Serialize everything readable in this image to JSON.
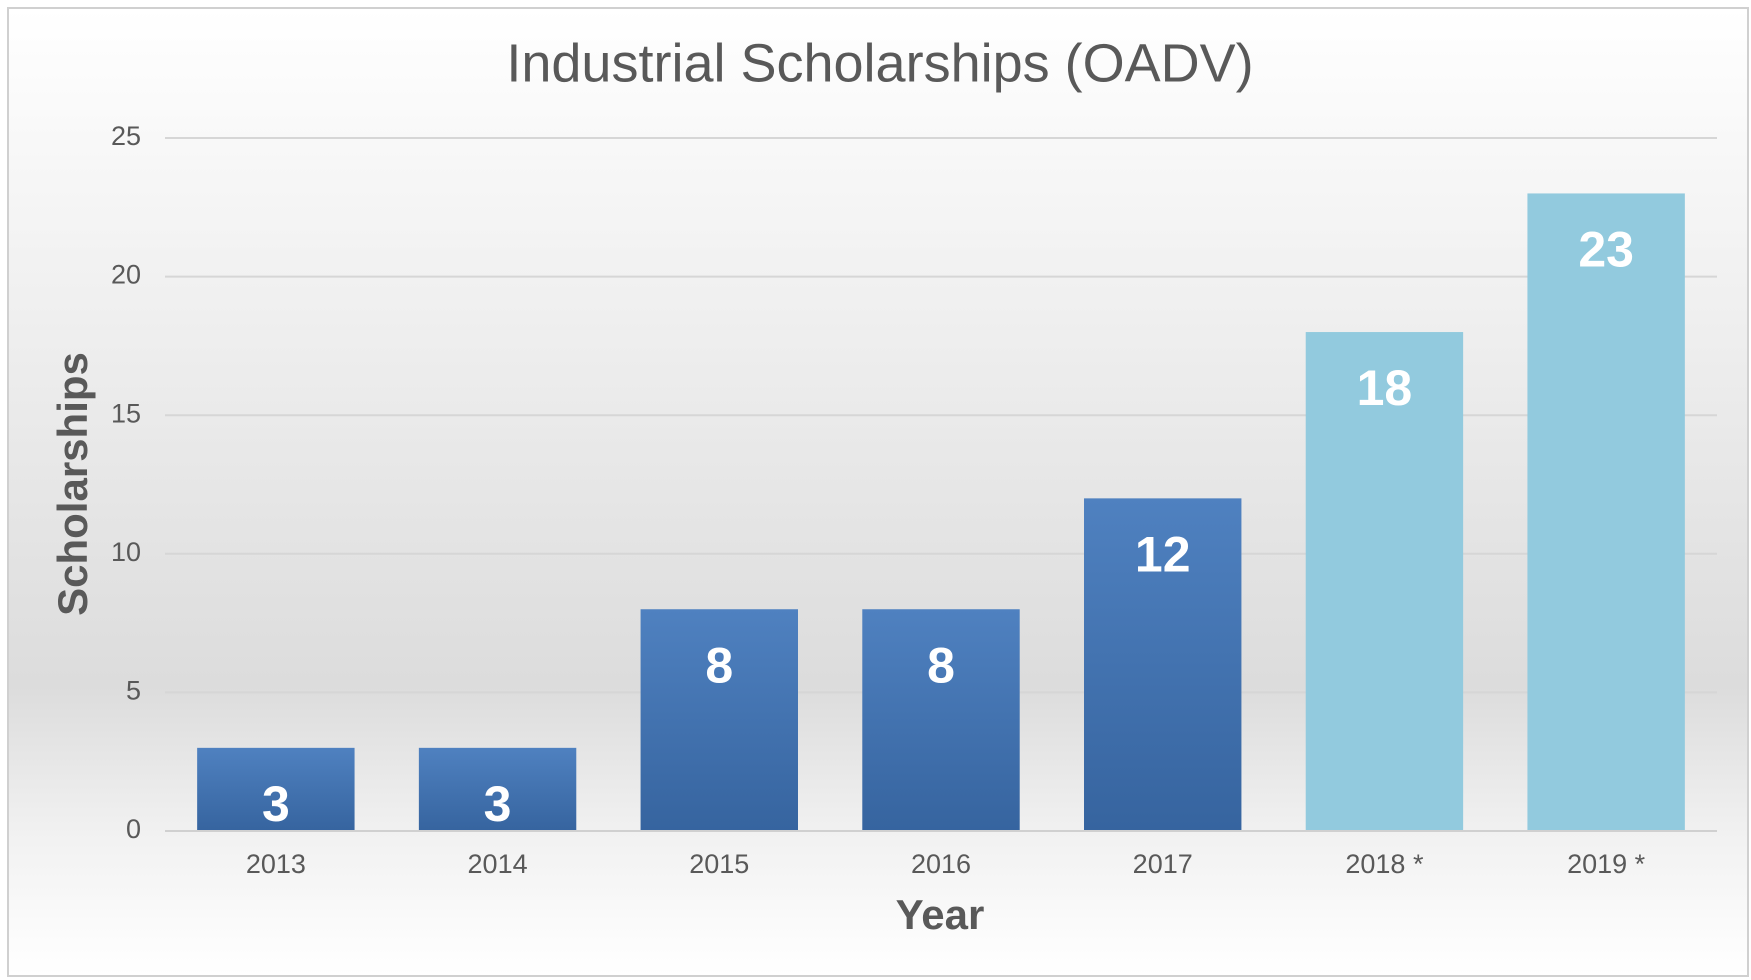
{
  "chart_data": {
    "type": "bar",
    "title": "Industrial Scholarships (OADV)",
    "x_label": "Year",
    "y_label": "Scholarships",
    "categories": [
      "2013",
      "2014",
      "2015",
      "2016",
      "2017",
      "2018 *",
      "2019 *"
    ],
    "values": [
      3,
      3,
      8,
      8,
      12,
      18,
      23
    ],
    "colors": [
      "#3f70ae",
      "#3f70ae",
      "#3f70ae",
      "#3f70ae",
      "#3f70ae",
      "#92cade",
      "#92cade"
    ],
    "ylim": [
      0,
      25
    ],
    "yticks": [
      0,
      5,
      10,
      15,
      20,
      25
    ],
    "grid": true
  }
}
